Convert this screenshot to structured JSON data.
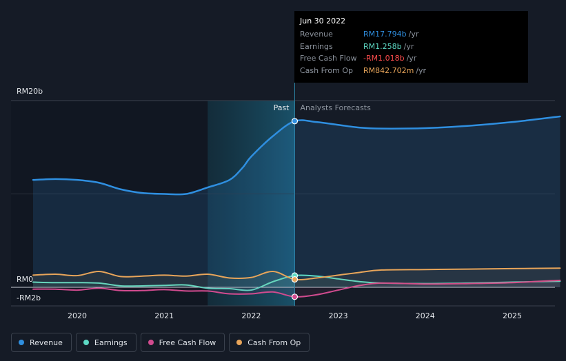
{
  "chart_data": {
    "type": "line",
    "y_tick_labels": [
      "RM20b",
      "RM0",
      "-RM2b"
    ],
    "ylim": [
      -2,
      20
    ],
    "x_ticks": [
      2020,
      2021,
      2022,
      2023,
      2024,
      2025
    ],
    "xlim": [
      2019.5,
      2025.55
    ],
    "past_label": "Past",
    "forecast_label": "Analysts Forecasts",
    "forecast_start": 2022.5,
    "highlight_start": 2021.5,
    "legend_placement": "bottom-left",
    "series": [
      {
        "name": "Revenue",
        "color": "#2f8fe0",
        "x": [
          2019.5,
          2019.75,
          2020.0,
          2020.25,
          2020.5,
          2020.75,
          2021.0,
          2021.25,
          2021.5,
          2021.75,
          2021.9,
          2022.0,
          2022.25,
          2022.5,
          2022.75,
          2023.0,
          2023.25,
          2023.5,
          2024.0,
          2024.5,
          2025.0,
          2025.55
        ],
        "y": [
          11.5,
          11.6,
          11.5,
          11.2,
          10.5,
          10.1,
          10.0,
          10.0,
          10.7,
          11.5,
          12.8,
          14.0,
          16.2,
          17.8,
          17.7,
          17.4,
          17.1,
          17.0,
          17.05,
          17.3,
          17.7,
          18.3
        ]
      },
      {
        "name": "Earnings",
        "color": "#5dd9c4",
        "x": [
          2019.5,
          2019.75,
          2020.0,
          2020.25,
          2020.5,
          2020.75,
          2021.0,
          2021.25,
          2021.5,
          2021.75,
          2022.0,
          2022.25,
          2022.5,
          2022.75,
          2023.0,
          2023.25,
          2023.5,
          2024.0,
          2024.5,
          2025.0,
          2025.55
        ],
        "y": [
          0.55,
          0.5,
          0.5,
          0.45,
          0.15,
          0.15,
          0.2,
          0.25,
          -0.1,
          -0.15,
          -0.3,
          0.6,
          1.258,
          1.2,
          0.9,
          0.6,
          0.45,
          0.4,
          0.45,
          0.55,
          0.65
        ]
      },
      {
        "name": "Free Cash Flow",
        "color": "#d14b8f",
        "x": [
          2019.5,
          2019.75,
          2020.0,
          2020.25,
          2020.5,
          2020.75,
          2021.0,
          2021.25,
          2021.5,
          2021.75,
          2022.0,
          2022.25,
          2022.5,
          2022.75,
          2023.0,
          2023.25,
          2023.5,
          2024.0,
          2024.5,
          2025.0,
          2025.55
        ],
        "y": [
          -0.2,
          -0.2,
          -0.3,
          -0.1,
          -0.35,
          -0.35,
          -0.25,
          -0.4,
          -0.4,
          -0.7,
          -0.7,
          -0.5,
          -1.018,
          -0.8,
          -0.3,
          0.2,
          0.45,
          0.35,
          0.4,
          0.5,
          0.75
        ]
      },
      {
        "name": "Cash From Op",
        "color": "#e8a55a",
        "x": [
          2019.5,
          2019.75,
          2020.0,
          2020.25,
          2020.5,
          2020.75,
          2021.0,
          2021.25,
          2021.5,
          2021.75,
          2022.0,
          2022.25,
          2022.5,
          2022.75,
          2023.0,
          2023.25,
          2023.5,
          2024.0,
          2024.5,
          2025.0,
          2025.55
        ],
        "y": [
          1.3,
          1.4,
          1.25,
          1.7,
          1.15,
          1.2,
          1.3,
          1.2,
          1.4,
          1.0,
          1.05,
          1.7,
          0.843,
          1.0,
          1.3,
          1.6,
          1.85,
          1.9,
          1.95,
          2.0,
          2.05
        ]
      }
    ]
  },
  "tooltip": {
    "date": "Jun 30 2022",
    "rows": [
      {
        "label": "Revenue",
        "value": "RM17.794b",
        "unit": "/yr",
        "color": "#2f8fe0"
      },
      {
        "label": "Earnings",
        "value": "RM1.258b",
        "unit": "/yr",
        "color": "#5dd9c4"
      },
      {
        "label": "Free Cash Flow",
        "value": "-RM1.018b",
        "unit": "/yr",
        "color": "#ff4d4d"
      },
      {
        "label": "Cash From Op",
        "value": "RM842.702m",
        "unit": "/yr",
        "color": "#e8a55a"
      }
    ]
  },
  "legend": [
    {
      "label": "Revenue",
      "color": "#2f8fe0"
    },
    {
      "label": "Earnings",
      "color": "#5dd9c4"
    },
    {
      "label": "Free Cash Flow",
      "color": "#d14b8f"
    },
    {
      "label": "Cash From Op",
      "color": "#e8a55a"
    }
  ]
}
